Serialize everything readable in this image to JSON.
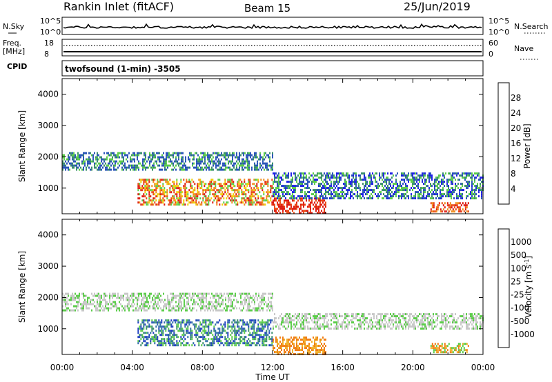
{
  "header": {
    "station": "Rankin Inlet (fitACF)",
    "beam": "Beam 15",
    "date": "25/Jun/2019"
  },
  "nsky_panel": {
    "left_label": "N.Sky",
    "right_label": "N.Search",
    "left_ticks": [
      "10^5",
      "10^0"
    ],
    "right_ticks": [
      "10^5",
      "10^0"
    ]
  },
  "freq_panel": {
    "left_label_line1": "Freq.",
    "left_label_line2": "[MHz]",
    "right_label": "Nave",
    "left_ticks": [
      "18",
      "8"
    ],
    "right_ticks": [
      "60",
      "0"
    ]
  },
  "cpid_panel": {
    "left_label": "CPID",
    "program": "twofsound (1-min) -3505"
  },
  "chart_data": [
    {
      "type": "heatmap",
      "title": "Power [dB]",
      "xlabel": "",
      "ylabel": "Slant Range [km]",
      "x_range_hours": [
        0,
        24
      ],
      "ylim": [
        180,
        4500
      ],
      "y_ticks": [
        1000,
        2000,
        3000,
        4000
      ],
      "colorbar": {
        "label": "Power [dB]",
        "ticks": [
          "4",
          "8",
          "12",
          "16",
          "20",
          "24",
          "28"
        ],
        "colors": [
          "#1e20e6",
          "#2a55b8",
          "#3a8f6c",
          "#5ccd4a",
          "#f0d000",
          "#f08c18",
          "#ea4a14",
          "#dd1a10"
        ]
      },
      "echo_regions": [
        {
          "t_start": 0.0,
          "t_end": 12.0,
          "range_start": 1600,
          "range_end": 2150,
          "level": "8-12 dB"
        },
        {
          "t_start": 4.3,
          "t_end": 12.0,
          "range_start": 500,
          "range_end": 1300,
          "level": "16-28 dB"
        },
        {
          "t_start": 12.0,
          "t_end": 15.0,
          "range_start": 200,
          "range_end": 700,
          "level": "24-28 dB"
        },
        {
          "t_start": 12.0,
          "t_end": 24.0,
          "range_start": 700,
          "range_end": 1500,
          "level": "4-12 dB"
        },
        {
          "t_start": 21.0,
          "t_end": 23.2,
          "range_start": 250,
          "range_end": 550,
          "level": "20-28 dB"
        }
      ]
    },
    {
      "type": "heatmap",
      "title": "Velocity [m s-1]",
      "xlabel": "Time UT",
      "ylabel": "Slant Range [km]",
      "x_range_hours": [
        0,
        24
      ],
      "x_ticks": [
        "00:00",
        "04:00",
        "08:00",
        "12:00",
        "16:00",
        "20:00",
        "00:00"
      ],
      "ylim": [
        180,
        4500
      ],
      "y_ticks": [
        1000,
        2000,
        3000,
        4000
      ],
      "colorbar": {
        "label": "Velocity",
        "unit_base": "[m s",
        "unit_exp": "-1",
        "unit_close": "]",
        "ticks": [
          "1000",
          "500",
          "100",
          "25",
          "-25",
          "-100",
          "-500",
          "-1000"
        ],
        "colors": [
          "#2040c0",
          "#2f6fa8",
          "#3a8f6c",
          "#5ccd4a",
          "#c8c8c8",
          "#f0b02c",
          "#f07e14",
          "#e85018",
          "#e01a10"
        ]
      },
      "echo_regions": [
        {
          "t_start": 0.0,
          "t_end": 12.0,
          "range_start": 1600,
          "range_end": 2150,
          "velocity": "-25 to 25"
        },
        {
          "t_start": 4.3,
          "t_end": 12.0,
          "range_start": 500,
          "range_end": 1300,
          "velocity": "100 to 1000"
        },
        {
          "t_start": 12.0,
          "t_end": 15.0,
          "range_start": 200,
          "range_end": 750,
          "velocity": "-500 to -100"
        },
        {
          "t_start": 12.0,
          "t_end": 24.0,
          "range_start": 1000,
          "range_end": 1500,
          "velocity": "-25 to 25"
        },
        {
          "t_start": 21.0,
          "t_end": 23.2,
          "range_start": 250,
          "range_end": 550,
          "velocity": "-500 to -100"
        }
      ]
    }
  ]
}
